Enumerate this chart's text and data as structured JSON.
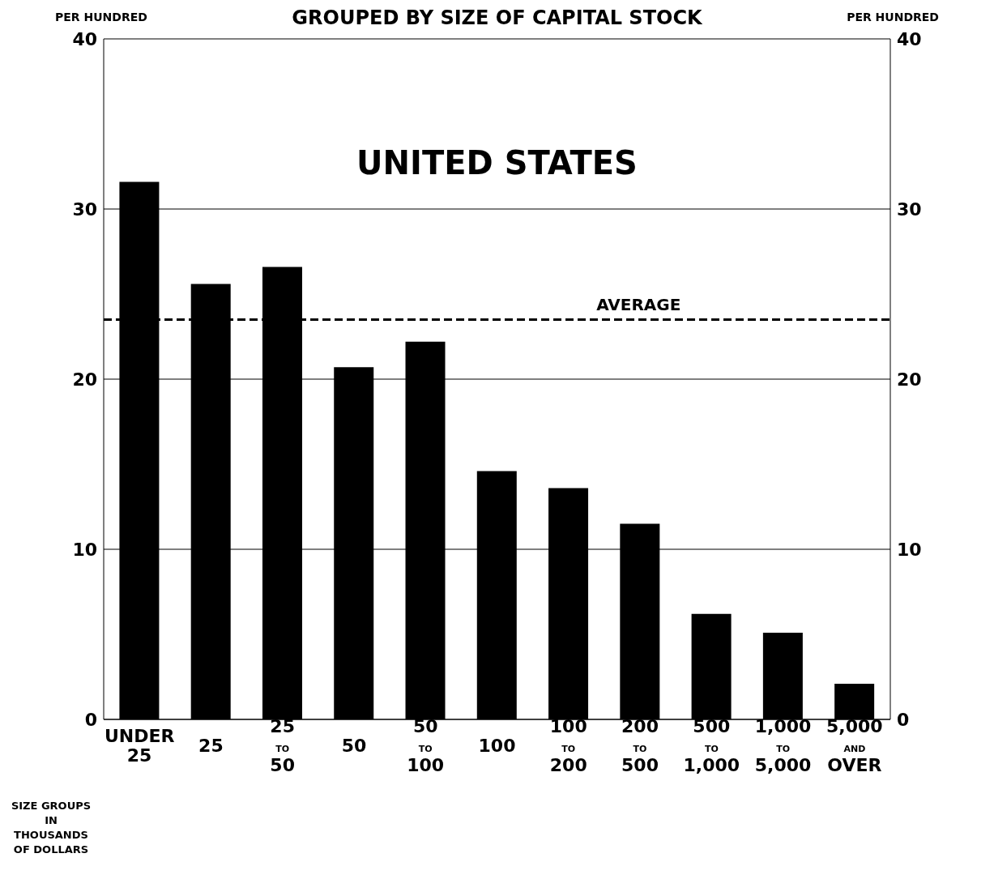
{
  "chart_data": {
    "type": "bar",
    "title": "GROUPED BY SIZE OF CAPITAL STOCK",
    "subtitle": "UNITED STATES",
    "xlabel": "SIZE GROUPS IN THOUSANDS OF DOLLARS",
    "ylabel": "PER HUNDRED",
    "y2label": "PER HUNDRED",
    "categories": [
      "UNDER 25",
      "25",
      "25 TO 50",
      "50",
      "50 TO 100",
      "100",
      "100 TO 200",
      "200 TO 500",
      "500 TO 1,000",
      "1,000 TO 5,000",
      "5,000 AND OVER"
    ],
    "values": [
      31.6,
      25.6,
      26.6,
      20.7,
      22.2,
      14.6,
      13.6,
      11.5,
      6.2,
      5.1,
      2.1
    ],
    "color": "#000000",
    "ylim": [
      0,
      40
    ],
    "yticks": [
      0,
      10,
      20,
      30,
      40
    ],
    "y2lim": [
      0,
      40
    ],
    "y2ticks": [
      0,
      10,
      20,
      30,
      40
    ],
    "grid": "y",
    "ref_lines": [
      {
        "axis": "y",
        "value": 23.5,
        "label": "AVERAGE",
        "line_style": "dashed",
        "color": "#000000"
      }
    ]
  }
}
